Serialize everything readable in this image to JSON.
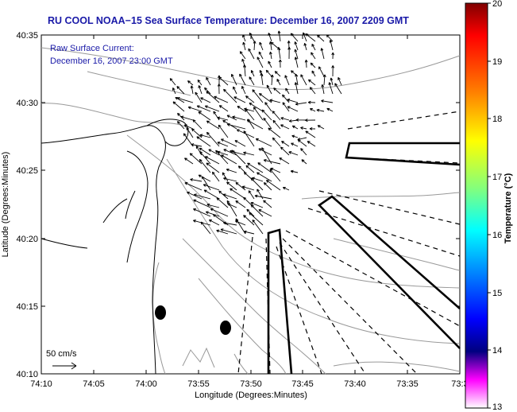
{
  "title": "RU COOL  NOAA−15  Sea Surface Temperature:  December 16, 2007 2209 GMT",
  "current_note": {
    "line1": "Raw Surface Current:",
    "line2": "December 16, 2007 23:00 GMT"
  },
  "x_axis": {
    "label": "Longitude (Degrees:Minutes)",
    "ticks": [
      "74:10",
      "74:05",
      "74:00",
      "73:55",
      "73:50",
      "73:45",
      "73:40",
      "73:35",
      "73:3"
    ]
  },
  "y_axis": {
    "label": "Latitude (Degrees:Minutes)",
    "ticks": [
      "40:35",
      "40:30",
      "40:25",
      "40:20",
      "40:15",
      "40:10"
    ]
  },
  "scale_vector": {
    "label": "50 cm/s"
  },
  "colorbar": {
    "label": "Temperature (°C)",
    "ticks": [
      "20",
      "19",
      "18",
      "17",
      "16",
      "15",
      "14",
      "13"
    ],
    "range": [
      13,
      20
    ],
    "colors": [
      "#800000",
      "#ff0000",
      "#ff8000",
      "#ffff00",
      "#80ff80",
      "#00ffff",
      "#0080ff",
      "#0000ff",
      "#000080",
      "#ff00ff",
      "#ffffff"
    ]
  },
  "colors": {
    "title": "#1a1aa8",
    "land_outline": "#000000",
    "bathymetry": "#999999",
    "vectors": "#000000"
  }
}
